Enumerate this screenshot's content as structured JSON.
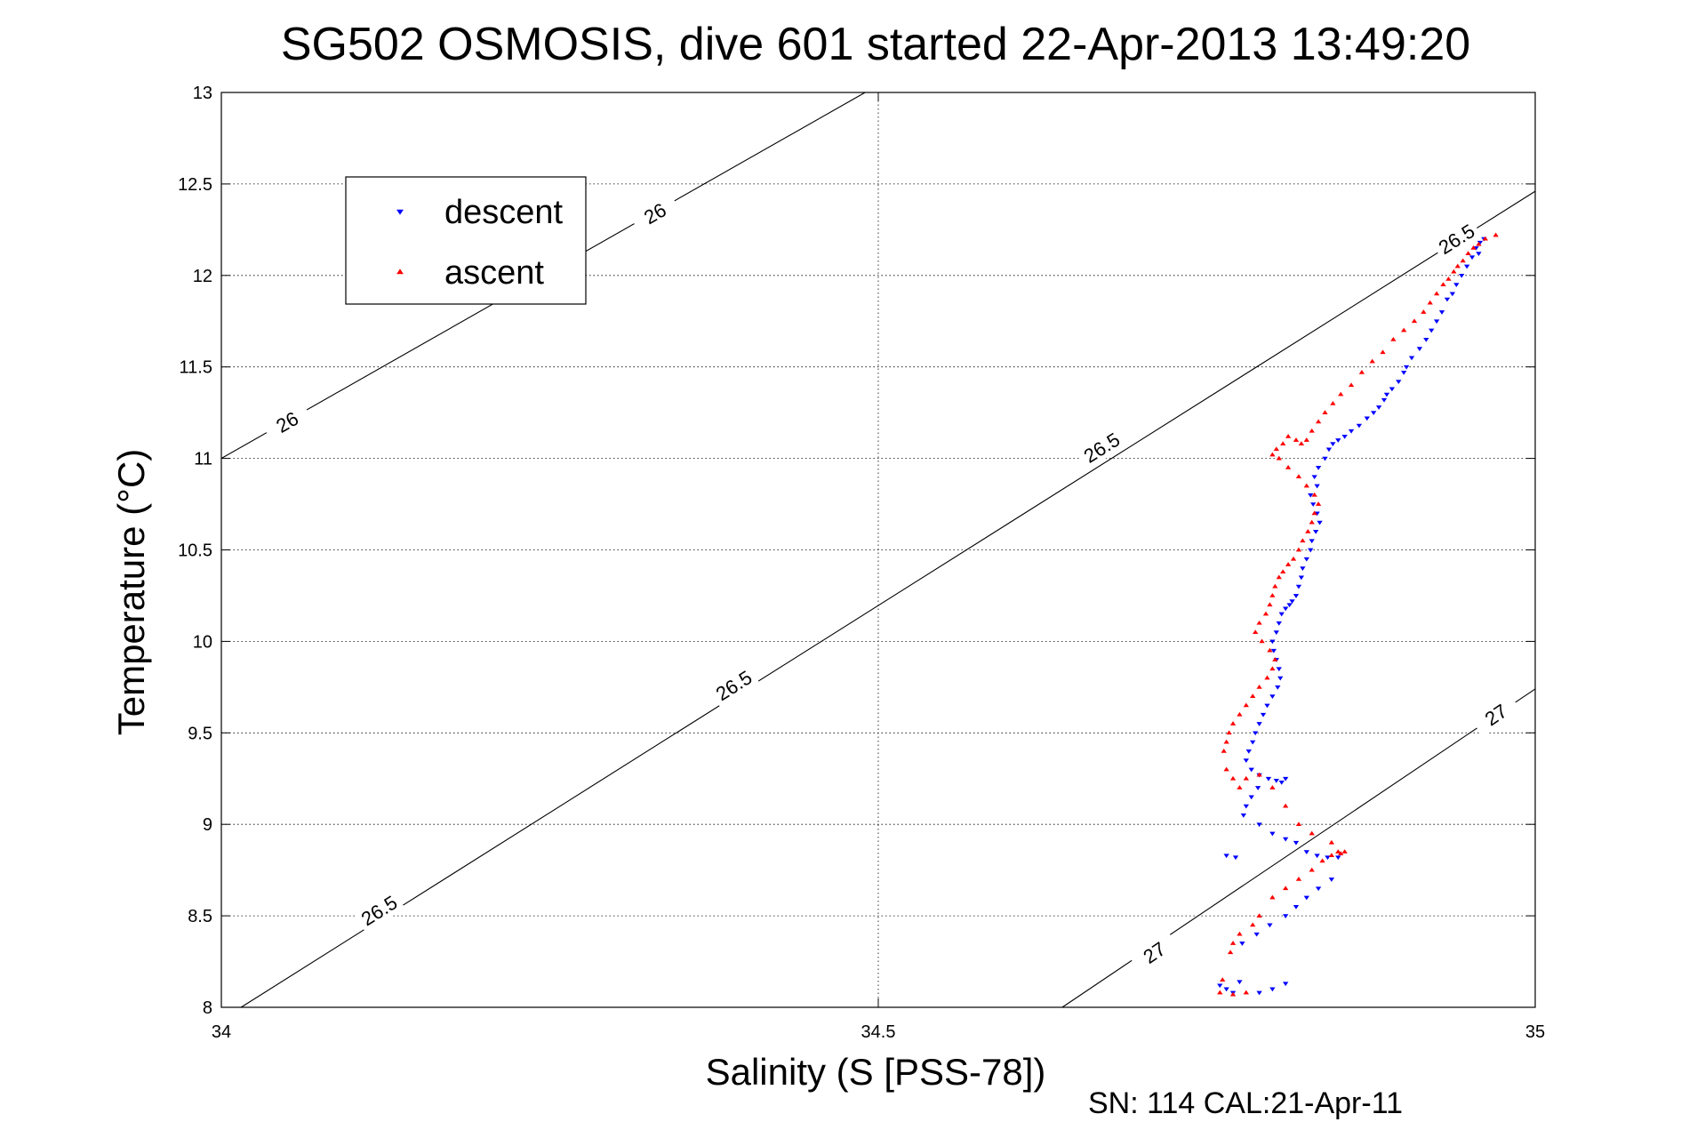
{
  "chart_data": {
    "type": "scatter",
    "title": "SG502 OSMOSIS, dive 601 started 22-Apr-2013 13:49:20",
    "xlabel": "Salinity (S [PSS-78])",
    "ylabel": "Temperature (°C)",
    "footer": "SN: 114  CAL:21-Apr-11",
    "xlim": [
      34,
      35
    ],
    "ylim": [
      8,
      13
    ],
    "xticks": [
      34,
      34.5,
      35
    ],
    "xtick_labels": [
      "34",
      "34.5",
      "35"
    ],
    "yticks": [
      8,
      8.5,
      9,
      9.5,
      10,
      10.5,
      11,
      11.5,
      12,
      12.5,
      13
    ],
    "ytick_labels": [
      "8",
      "8.5",
      "9",
      "9.5",
      "10",
      "10.5",
      "11",
      "11.5",
      "12",
      "12.5",
      "13"
    ],
    "grid": true,
    "legend_position": "top-left",
    "contours": [
      {
        "label": "26",
        "points": [
          [
            34.0,
            11.0
          ],
          [
            34.49,
            13.0
          ]
        ],
        "label_positions": [
          [
            34.05,
            11.2
          ],
          [
            34.33,
            12.34
          ]
        ]
      },
      {
        "label": "26.5",
        "points": [
          [
            34.015,
            8.0
          ],
          [
            35.0,
            12.46
          ]
        ],
        "label_positions": [
          [
            34.12,
            8.53
          ],
          [
            34.39,
            9.76
          ],
          [
            34.67,
            11.06
          ],
          [
            34.94,
            12.2
          ]
        ]
      },
      {
        "label": "27",
        "points": [
          [
            34.64,
            8.0
          ],
          [
            35.0,
            9.74
          ]
        ],
        "label_positions": [
          [
            34.71,
            8.3
          ],
          [
            34.97,
            9.6
          ]
        ]
      }
    ],
    "series": [
      {
        "name": "descent",
        "color": "#0000ff",
        "marker": "triangle-down",
        "x": [
          34.961,
          34.958,
          34.955,
          34.957,
          34.952,
          34.948,
          34.944,
          34.94,
          34.937,
          34.933,
          34.929,
          34.925,
          34.921,
          34.917,
          34.912,
          34.906,
          34.902,
          34.9,
          34.896,
          34.891,
          34.887,
          34.885,
          34.881,
          34.877,
          34.872,
          34.866,
          34.86,
          34.855,
          34.85,
          34.846,
          34.843,
          34.84,
          34.835,
          34.832,
          34.834,
          34.829,
          34.831,
          34.834,
          34.836,
          34.833,
          34.83,
          34.829,
          34.826,
          34.823,
          34.822,
          34.82,
          34.818,
          34.815,
          34.813,
          34.81,
          34.807,
          34.805,
          34.803,
          34.8,
          34.801,
          34.803,
          34.805,
          34.806,
          34.804,
          34.8,
          34.796,
          34.793,
          34.79,
          34.787,
          34.785,
          34.782,
          34.78,
          34.784,
          34.79,
          34.797,
          34.803,
          34.807,
          34.81,
          34.789,
          34.784,
          34.78,
          34.778,
          34.79,
          34.8,
          34.81,
          34.818,
          34.826,
          34.834,
          34.842,
          34.85,
          34.845,
          34.835,
          34.826,
          34.818,
          34.81,
          34.798,
          34.788,
          34.777,
          34.772,
          34.765,
          34.76,
          34.765,
          34.77,
          34.775,
          34.79,
          34.8,
          34.81
        ],
        "y": [
          12.2,
          12.18,
          12.15,
          12.12,
          12.1,
          12.05,
          12.0,
          11.95,
          11.9,
          11.87,
          11.8,
          11.75,
          11.7,
          11.65,
          11.6,
          11.55,
          11.5,
          11.47,
          11.42,
          11.38,
          11.35,
          11.32,
          11.28,
          11.25,
          11.22,
          11.18,
          11.15,
          11.12,
          11.1,
          11.08,
          11.05,
          11.0,
          10.95,
          10.9,
          10.85,
          10.8,
          10.75,
          10.7,
          10.65,
          10.6,
          10.55,
          10.5,
          10.45,
          10.4,
          10.35,
          10.3,
          10.25,
          10.22,
          10.2,
          10.18,
          10.15,
          10.1,
          10.05,
          10.0,
          9.95,
          9.9,
          9.85,
          9.8,
          9.75,
          9.7,
          9.65,
          9.6,
          9.55,
          9.5,
          9.45,
          9.4,
          9.35,
          9.3,
          9.27,
          9.25,
          9.24,
          9.23,
          9.25,
          9.2,
          9.15,
          9.1,
          9.05,
          9.0,
          8.95,
          8.92,
          8.9,
          8.85,
          8.83,
          8.82,
          8.82,
          8.7,
          8.65,
          8.6,
          8.55,
          8.5,
          8.45,
          8.4,
          8.35,
          8.82,
          8.83,
          8.12,
          8.1,
          8.08,
          8.14,
          8.08,
          8.1,
          8.13
        ]
      },
      {
        "name": "ascent",
        "color": "#ff0000",
        "marker": "triangle-up",
        "x": [
          34.97,
          34.962,
          34.957,
          34.953,
          34.949,
          34.945,
          34.941,
          34.938,
          34.934,
          34.93,
          34.925,
          34.92,
          34.915,
          34.908,
          34.9,
          34.892,
          34.884,
          34.876,
          34.868,
          34.86,
          34.852,
          34.846,
          34.84,
          34.835,
          34.83,
          34.826,
          34.822,
          34.818,
          34.812,
          34.808,
          34.803,
          34.8,
          34.805,
          34.812,
          34.82,
          34.826,
          34.832,
          34.835,
          34.832,
          34.83,
          34.827,
          34.823,
          34.82,
          34.816,
          34.812,
          34.808,
          34.805,
          34.802,
          34.8,
          34.798,
          34.795,
          34.79,
          34.787,
          34.792,
          34.798,
          34.802,
          34.8,
          34.796,
          34.79,
          34.785,
          34.78,
          34.775,
          34.77,
          34.767,
          34.765,
          34.763,
          34.765,
          34.77,
          34.775,
          34.78,
          34.79,
          34.8,
          34.81,
          34.82,
          34.83,
          34.845,
          34.85,
          34.855,
          34.852,
          34.845,
          34.838,
          34.83,
          34.82,
          34.81,
          34.8,
          34.79,
          34.785,
          34.775,
          34.77,
          34.768,
          34.762,
          34.76,
          34.77,
          34.78
        ],
        "y": [
          12.22,
          12.2,
          12.17,
          12.15,
          12.12,
          12.08,
          12.05,
          12.02,
          11.98,
          11.95,
          11.9,
          11.85,
          11.8,
          11.75,
          11.7,
          11.65,
          11.58,
          11.53,
          11.47,
          11.4,
          11.35,
          11.3,
          11.25,
          11.2,
          11.15,
          11.1,
          11.08,
          11.1,
          11.12,
          11.08,
          11.05,
          11.02,
          11.0,
          10.95,
          10.9,
          10.85,
          10.8,
          10.75,
          10.7,
          10.65,
          10.6,
          10.55,
          10.5,
          10.45,
          10.42,
          10.38,
          10.35,
          10.3,
          10.25,
          10.2,
          10.15,
          10.1,
          10.05,
          10.0,
          9.95,
          9.9,
          9.85,
          9.8,
          9.75,
          9.7,
          9.65,
          9.6,
          9.55,
          9.5,
          9.45,
          9.4,
          9.3,
          9.25,
          9.2,
          9.25,
          9.27,
          9.2,
          9.1,
          9.0,
          8.95,
          8.9,
          8.85,
          8.85,
          8.84,
          8.83,
          8.8,
          8.75,
          8.7,
          8.65,
          8.6,
          8.5,
          8.45,
          8.4,
          8.35,
          8.3,
          8.15,
          8.08,
          8.07,
          8.08
        ]
      }
    ]
  }
}
